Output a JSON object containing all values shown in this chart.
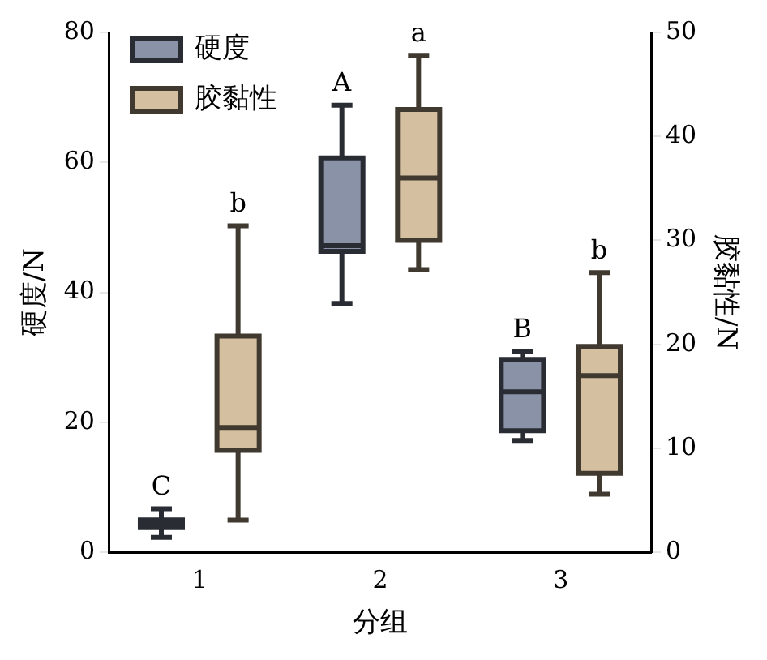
{
  "chart_data": {
    "type": "box",
    "xlabel": "分组",
    "ylabel": "硬度/N",
    "y2label": "胶黏性/N",
    "categories": [
      "1",
      "2",
      "3"
    ],
    "series": [
      {
        "name": "硬度",
        "color": "#8a92a8",
        "value_labels": [
          "C",
          "A",
          "B"
        ],
        "boxes": [
          {
            "low": 2.3,
            "q1": 3.8,
            "median": 4.3,
            "q3": 5,
            "high": 6.7
          },
          {
            "low": 38.3,
            "q1": 46.3,
            "median": 47.2,
            "q3": 60.7,
            "high": 68.8
          },
          {
            "low": 17.2,
            "q1": 18.7,
            "median": 24.7,
            "q3": 29.7,
            "high": 30.9
          }
        ]
      },
      {
        "name": "胶黏性",
        "color": "#d4bfa0",
        "axis": "y2",
        "value_labels": [
          "b",
          "a",
          "b"
        ],
        "boxes": [
          {
            "low": 3.1,
            "q1": 9.8,
            "median": 12,
            "q3": 20.8,
            "high": 31.4
          },
          {
            "low": 27.2,
            "q1": 30,
            "median": 36,
            "q3": 42.6,
            "high": 47.8
          },
          {
            "low": 5.6,
            "q1": 7.6,
            "median": 17,
            "q3": 19.8,
            "high": 26.9
          }
        ]
      }
    ],
    "ylim": [
      0,
      80
    ],
    "yticks": [
      0,
      20,
      40,
      60,
      80
    ],
    "y2lim": [
      0,
      50
    ],
    "y2ticks": [
      0,
      10,
      20,
      30,
      40,
      50
    ],
    "grid": false,
    "legend": "top left"
  }
}
